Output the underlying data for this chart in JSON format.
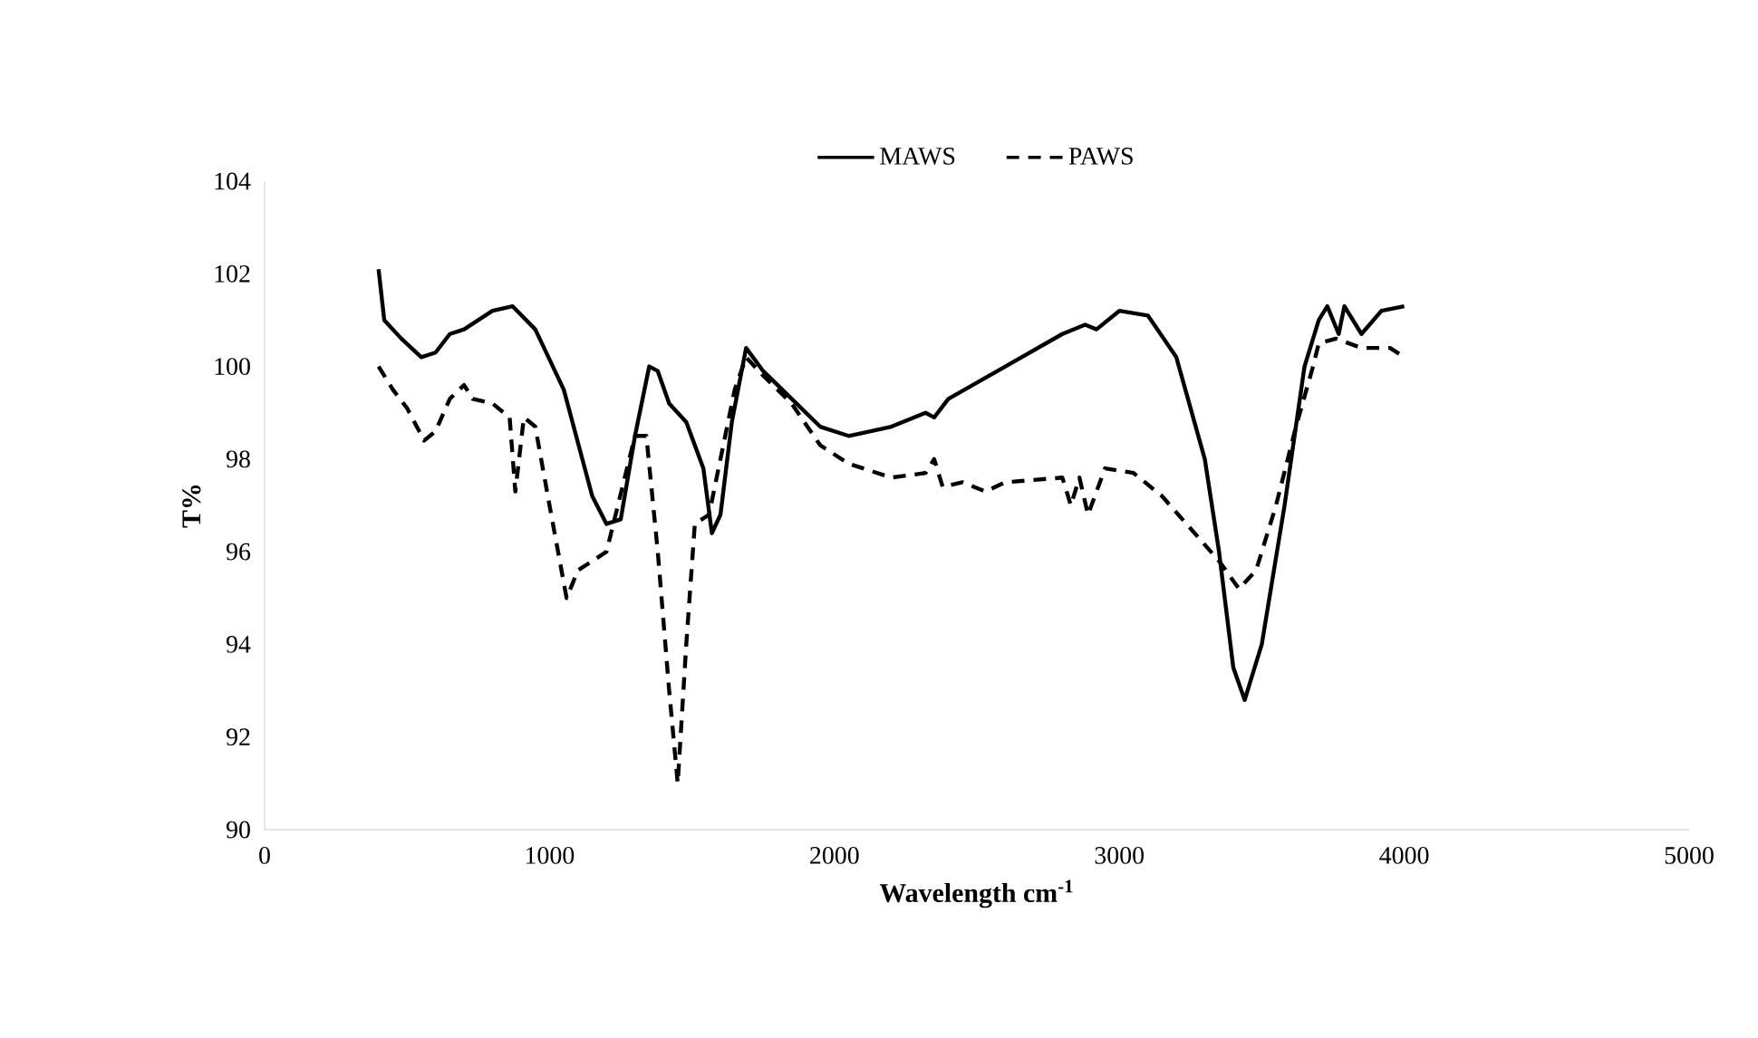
{
  "chart_data": {
    "type": "line",
    "xlabel": "Wavelength cm$^{-1}$",
    "ylabel": "T%",
    "xlim": [
      0,
      5000
    ],
    "xticks": [
      0,
      1000,
      2000,
      3000,
      4000,
      5000
    ],
    "ylim": [
      90,
      104
    ],
    "yticks": [
      90,
      92,
      94,
      96,
      98,
      100,
      102,
      104
    ],
    "grid": false,
    "legend": "top",
    "marker": "none",
    "series": [
      {
        "name": "MAWS",
        "color": "#000000",
        "line_style": "solid",
        "x": [
          400,
          420,
          480,
          550,
          600,
          650,
          700,
          800,
          870,
          950,
          1050,
          1150,
          1200,
          1250,
          1300,
          1350,
          1380,
          1420,
          1480,
          1540,
          1570,
          1600,
          1640,
          1690,
          1750,
          1850,
          1950,
          2050,
          2200,
          2320,
          2350,
          2400,
          2600,
          2800,
          2880,
          2920,
          3000,
          3100,
          3200,
          3300,
          3350,
          3400,
          3440,
          3500,
          3580,
          3650,
          3700,
          3730,
          3770,
          3790,
          3850,
          3920,
          4000
        ],
        "values": [
          102.1,
          101,
          100.6,
          100.2,
          100.3,
          100.7,
          100.8,
          101.2,
          101.3,
          100.8,
          99.5,
          97.2,
          96.6,
          96.7,
          98.5,
          100.0,
          99.9,
          99.2,
          98.8,
          97.8,
          96.4,
          96.8,
          98.8,
          100.4,
          99.9,
          99.3,
          98.7,
          98.5,
          98.7,
          99.0,
          98.9,
          99.3,
          100.0,
          100.7,
          100.9,
          100.8,
          101.2,
          101.1,
          100.2,
          98.0,
          96.0,
          93.5,
          92.8,
          94.0,
          97.0,
          100.0,
          101.0,
          101.3,
          100.7,
          101.3,
          100.7,
          101.2,
          101.3
        ]
      },
      {
        "name": "PAWS",
        "color": "#000000",
        "line_style": "dashed",
        "x": [
          400,
          450,
          500,
          560,
          600,
          650,
          700,
          730,
          800,
          860,
          880,
          910,
          950,
          1000,
          1060,
          1100,
          1150,
          1200,
          1300,
          1340,
          1380,
          1420,
          1450,
          1480,
          1510,
          1560,
          1600,
          1650,
          1690,
          1750,
          1850,
          1950,
          2050,
          2200,
          2320,
          2350,
          2380,
          2450,
          2530,
          2600,
          2800,
          2830,
          2860,
          2890,
          2950,
          3050,
          3150,
          3250,
          3350,
          3420,
          3480,
          3550,
          3620,
          3680,
          3700,
          3760,
          3850,
          3950,
          4000
        ],
        "values": [
          100.0,
          99.5,
          99.1,
          98.4,
          98.6,
          99.3,
          99.6,
          99.3,
          99.2,
          98.9,
          97.3,
          98.9,
          98.7,
          97.0,
          95.0,
          95.6,
          95.8,
          96.0,
          98.5,
          98.5,
          96.0,
          93.0,
          91.0,
          94.0,
          96.6,
          96.8,
          98.0,
          99.5,
          100.2,
          99.8,
          99.2,
          98.3,
          97.9,
          97.6,
          97.7,
          98.0,
          97.4,
          97.5,
          97.3,
          97.5,
          97.6,
          97.0,
          97.6,
          96.8,
          97.8,
          97.7,
          97.2,
          96.5,
          95.8,
          95.2,
          95.6,
          97.0,
          98.7,
          100.0,
          100.5,
          100.6,
          100.4,
          100.4,
          100.2
        ]
      }
    ]
  }
}
